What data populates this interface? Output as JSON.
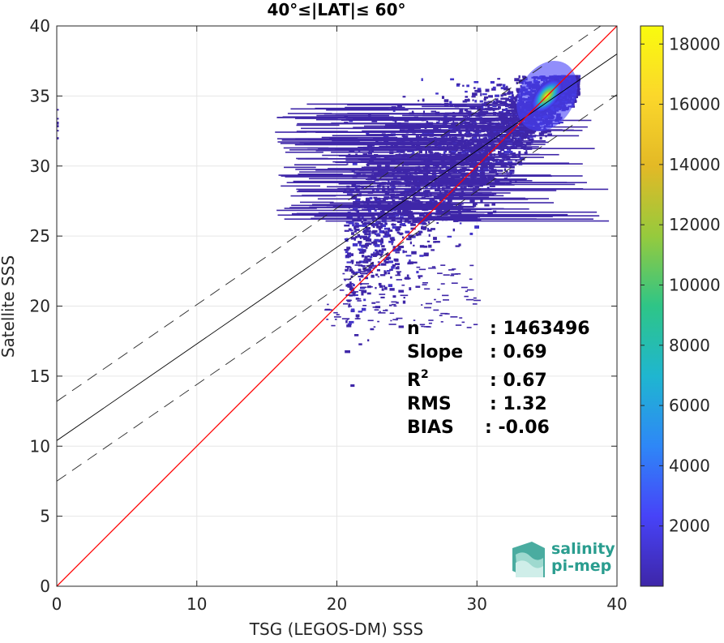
{
  "chart_data": {
    "type": "heatmap",
    "title": "40°≤|LAT|≤ 60°",
    "xlabel": "TSG (LEGOS-DM) SSS",
    "ylabel": "Satellite SSS",
    "xlim": [
      0,
      40
    ],
    "ylim": [
      0,
      40
    ],
    "x_ticks": [
      0,
      10,
      20,
      30,
      40
    ],
    "y_ticks": [
      0,
      5,
      10,
      15,
      20,
      25,
      30,
      35,
      40
    ],
    "grid": true,
    "colorbar": {
      "ticks": [
        2000,
        4000,
        6000,
        8000,
        10000,
        12000,
        14000,
        16000,
        18000
      ],
      "range": [
        0,
        18600
      ],
      "colors": [
        "#3e26a8",
        "#4743f8",
        "#2e87f7",
        "#1fb6d0",
        "#2ec587",
        "#96ca3d",
        "#e3b926",
        "#fbd72b",
        "#f9fb0e"
      ]
    },
    "lines": {
      "identity": {
        "slope": 1,
        "intercept": 0,
        "color": "#ff0000"
      },
      "fit": {
        "slope": 0.69,
        "intercept": 10.4,
        "color": "#000000"
      },
      "fit_upper": {
        "slope": 0.69,
        "intercept": 13.2,
        "style": "dashed"
      },
      "fit_lower": {
        "slope": 0.69,
        "intercept": 7.5,
        "style": "dashed"
      }
    },
    "density_core": {
      "x": 35.0,
      "y": 35.0,
      "peak": 18600
    },
    "stats": {
      "n_label": "n",
      "n_value": ": 1463496",
      "slope_label": "Slope",
      "slope_value": ": 0.69",
      "r2_label": "R",
      "r2_sup": "2",
      "r2_value": ": 0.67",
      "rms_label": "RMS",
      "rms_value": ": 1.32",
      "bias_label": "BIAS",
      "bias_value": ": -0.06"
    }
  },
  "logo": {
    "line1": "salinity",
    "line2": "pi-mep",
    "color": "#2a9d8f"
  }
}
